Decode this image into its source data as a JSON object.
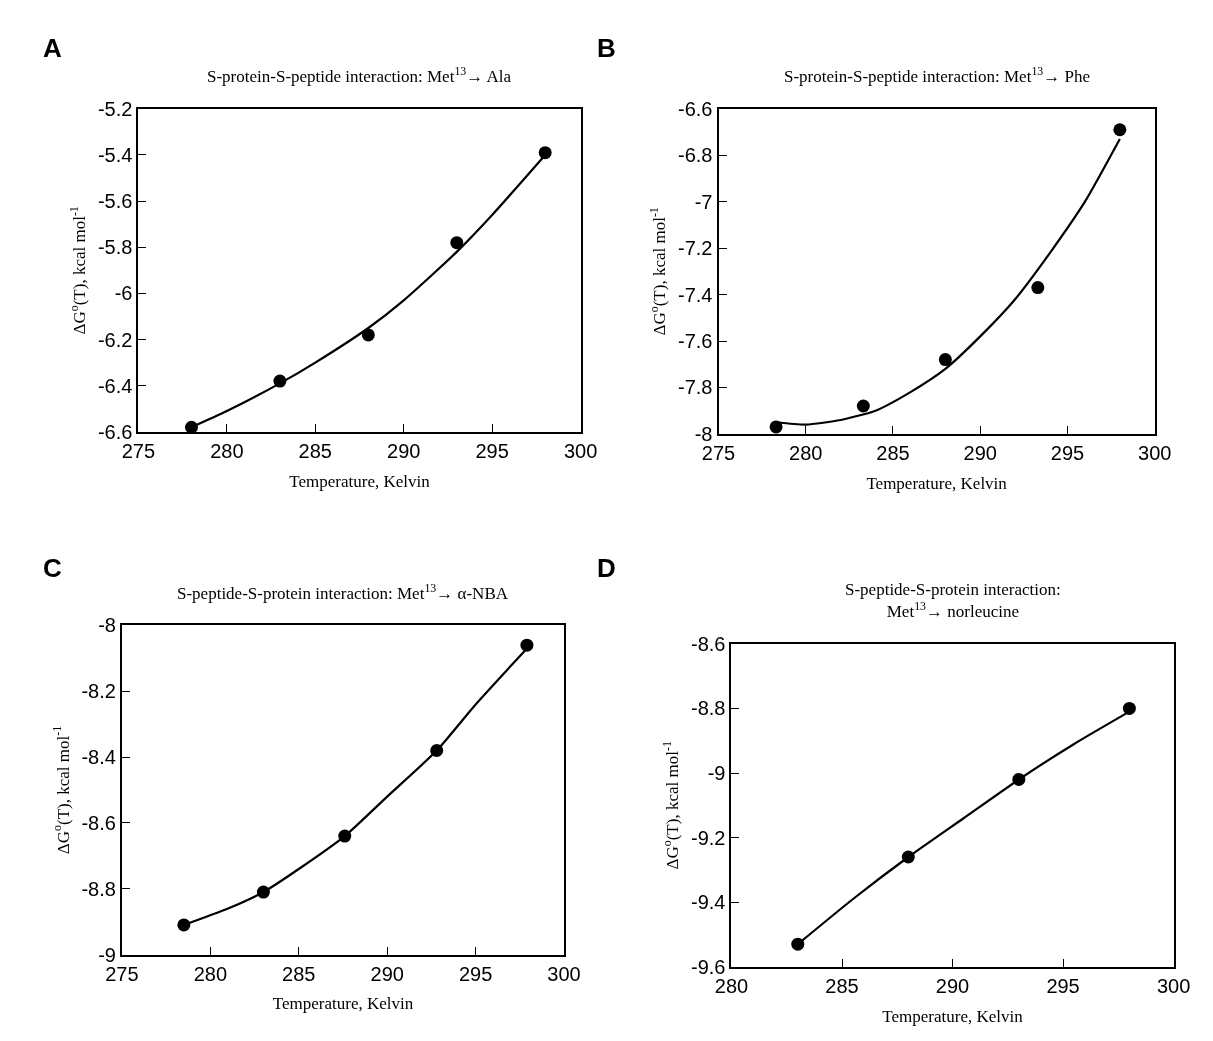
{
  "chart_data": [
    {
      "type": "scatter",
      "title": "S-protein-S-peptide interaction: Met$^{13}$→ Ala",
      "xlabel": "Temperature, Kelvin",
      "ylabel": "ΔG$^{o}$(T), kcal mol$^{-1}$",
      "annotations": [
        "A"
      ],
      "xlim": [
        275,
        300
      ],
      "xticks": [
        275,
        280,
        285,
        290,
        295,
        300
      ],
      "ylim": [
        -6.6,
        -5.2
      ],
      "yticks": [
        -6.6,
        -6.4,
        -6.2,
        -6,
        -5.8,
        -5.6,
        -5.4,
        -5.2
      ],
      "grid": false,
      "series": [
        {
          "marker": "circle",
          "color": "#000000",
          "x": [
            278,
            283,
            288,
            293,
            298
          ],
          "values": [
            -6.58,
            -6.38,
            -6.18,
            -5.78,
            -5.39
          ]
        },
        {
          "type": "line",
          "marker": "none",
          "color": "#000000",
          "line_style": "solid",
          "x": [
            278,
            280,
            283,
            285,
            288,
            290,
            293,
            295,
            298
          ],
          "values": [
            -6.58,
            -6.51,
            -6.39,
            -6.3,
            -6.15,
            -6.03,
            -5.82,
            -5.66,
            -5.4
          ]
        }
      ]
    },
    {
      "type": "scatter",
      "title": "S-protein-S-peptide interaction: Met$^{13}$→ Phe",
      "xlabel": "Temperature, Kelvin",
      "ylabel": "ΔG$^{o}$(T), kcal mol$^{-1}$",
      "annotations": [
        "B"
      ],
      "xlim": [
        275,
        300
      ],
      "xticks": [
        275,
        280,
        285,
        290,
        295,
        300
      ],
      "ylim": [
        -8,
        -6.6
      ],
      "yticks": [
        -8,
        -7.8,
        -7.6,
        -7.4,
        -7.2,
        -7,
        -6.8,
        -6.6
      ],
      "grid": false,
      "series": [
        {
          "marker": "circle",
          "color": "#000000",
          "x": [
            278.3,
            283.3,
            288,
            293.3,
            298
          ],
          "values": [
            -7.97,
            -7.88,
            -7.68,
            -7.37,
            -6.69
          ]
        },
        {
          "type": "line",
          "marker": "none",
          "color": "#000000",
          "line_style": "solid",
          "x": [
            278.3,
            280,
            282,
            284,
            286,
            288,
            290,
            292,
            294,
            296,
            298
          ],
          "values": [
            -7.95,
            -7.96,
            -7.94,
            -7.9,
            -7.82,
            -7.72,
            -7.58,
            -7.42,
            -7.22,
            -7.0,
            -6.73
          ]
        }
      ]
    },
    {
      "type": "scatter",
      "title": "S-peptide-S-protein interaction: Met$^{13}$→ α-NBA",
      "xlabel": "Temperature, Kelvin",
      "ylabel": "ΔG$^{o}$(T), kcal mol$^{-1}$",
      "annotations": [
        "C"
      ],
      "xlim": [
        275,
        300
      ],
      "xticks": [
        275,
        280,
        285,
        290,
        295,
        300
      ],
      "ylim": [
        -9,
        -8
      ],
      "yticks": [
        -9,
        -8.8,
        -8.6,
        -8.4,
        -8.2,
        -8
      ],
      "grid": false,
      "series": [
        {
          "marker": "circle",
          "color": "#000000",
          "x": [
            278.5,
            283,
            287.6,
            292.8,
            297.9
          ],
          "values": [
            -8.91,
            -8.81,
            -8.64,
            -8.38,
            -8.06
          ]
        },
        {
          "type": "line",
          "marker": "none",
          "color": "#000000",
          "line_style": "solid",
          "x": [
            278.5,
            281,
            283,
            285,
            287.6,
            290,
            292.8,
            295,
            297.9
          ],
          "values": [
            -8.91,
            -8.86,
            -8.81,
            -8.74,
            -8.64,
            -8.52,
            -8.38,
            -8.24,
            -8.07
          ]
        }
      ]
    },
    {
      "type": "scatter",
      "title": "S-peptide-S-protein interaction:\nMet$^{13}$→ norleucine",
      "xlabel": "Temperature, Kelvin",
      "ylabel": "ΔG$^{o}$(T), kcal mol$^{-1}$",
      "annotations": [
        "D"
      ],
      "xlim": [
        280,
        300
      ],
      "xticks": [
        280,
        285,
        290,
        295,
        300
      ],
      "ylim": [
        -9.6,
        -8.6
      ],
      "yticks": [
        -9.6,
        -9.4,
        -9.2,
        -9,
        -8.8,
        -8.6
      ],
      "grid": false,
      "series": [
        {
          "marker": "circle",
          "color": "#000000",
          "x": [
            283,
            288,
            293,
            298
          ],
          "values": [
            -9.53,
            -9.26,
            -9.02,
            -8.8
          ]
        },
        {
          "type": "line",
          "marker": "none",
          "color": "#000000",
          "line_style": "solid",
          "x": [
            283,
            285.5,
            288,
            290.5,
            293,
            295.5,
            298
          ],
          "values": [
            -9.53,
            -9.39,
            -9.26,
            -9.14,
            -9.02,
            -8.91,
            -8.81
          ]
        }
      ]
    }
  ]
}
